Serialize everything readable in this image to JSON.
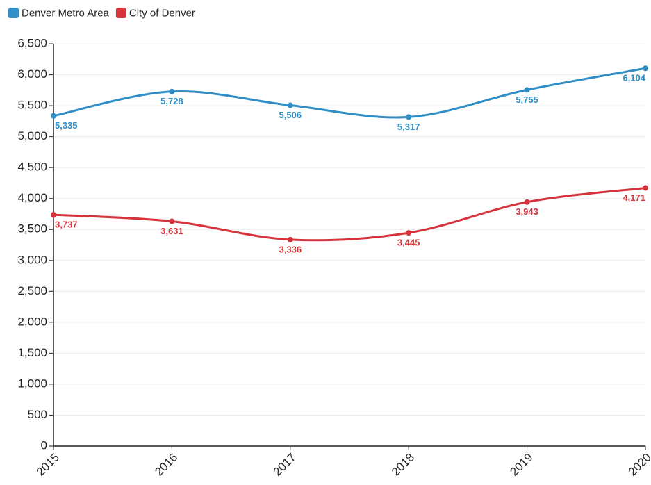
{
  "chart_data": {
    "type": "line",
    "categories": [
      "2015",
      "2016",
      "2017",
      "2018",
      "2019",
      "2020"
    ],
    "series": [
      {
        "name": "Denver Metro Area",
        "color": "#2f8ec6",
        "values": [
          5335,
          5728,
          5506,
          5317,
          5755,
          6104
        ],
        "value_labels": [
          "5,335",
          "5,728",
          "5,506",
          "5,317",
          "5,755",
          "6,104"
        ]
      },
      {
        "name": "City of Denver",
        "color": "#d6343c",
        "values": [
          3737,
          3631,
          3336,
          3445,
          3943,
          4171
        ],
        "value_labels": [
          "3,737",
          "3,631",
          "3,336",
          "3,445",
          "3,943",
          "4,171"
        ]
      }
    ],
    "ylim": [
      0,
      6500
    ],
    "yticks": [
      0,
      500,
      {
        "value": 1000,
        "label": "1,000"
      },
      {
        "value": 1500,
        "label": "1,500"
      },
      {
        "value": 2000,
        "label": "2,000"
      },
      {
        "value": 2500,
        "label": "2,500"
      },
      {
        "value": 3000,
        "label": "3,000"
      },
      {
        "value": 3500,
        "label": "3,500"
      },
      {
        "value": 4000,
        "label": "4,000"
      },
      {
        "value": 4500,
        "label": "4,500"
      },
      {
        "value": 5000,
        "label": "5,000"
      },
      {
        "value": 5500,
        "label": "5,500"
      },
      {
        "value": 6000,
        "label": "6,000"
      },
      {
        "value": 6500,
        "label": "6,500"
      }
    ],
    "grid": true,
    "legend": "top-left"
  }
}
